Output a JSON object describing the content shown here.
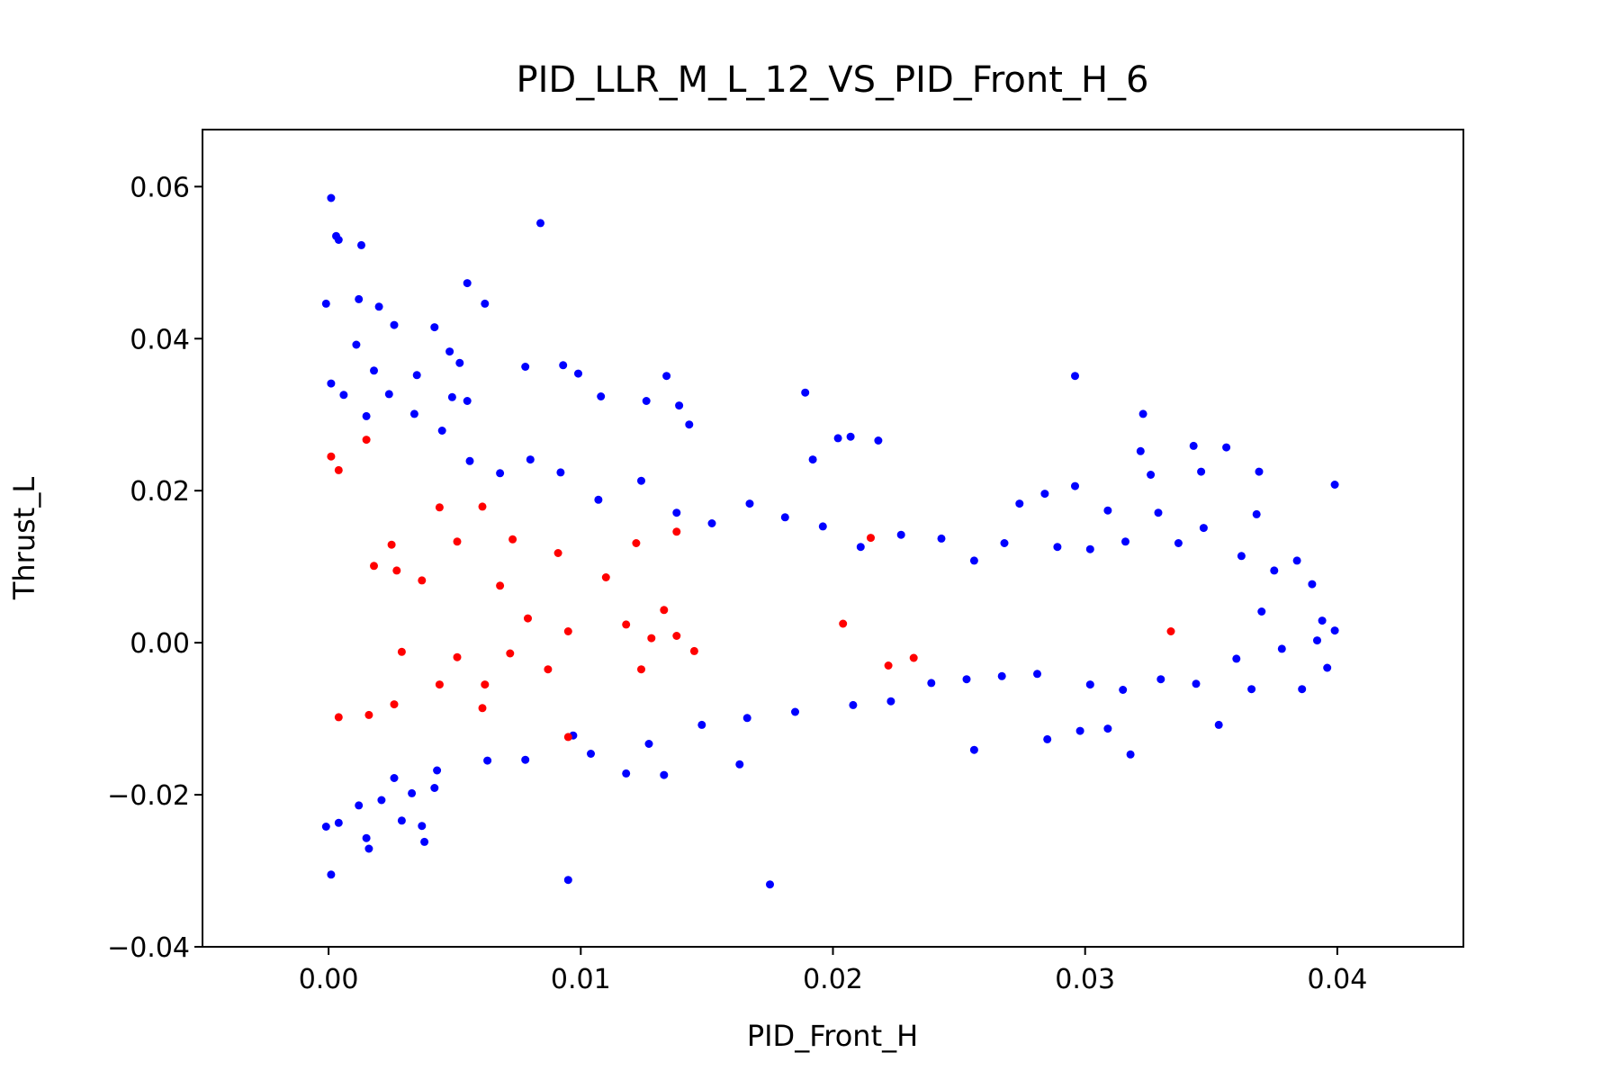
{
  "chart_data": {
    "type": "scatter",
    "title": "PID_LLR_M_L_12_VS_PID_Front_H_6",
    "xlabel": "PID_Front_H",
    "ylabel": "Thrust_L",
    "xlim": [
      -0.005,
      0.045
    ],
    "ylim": [
      -0.04,
      0.0675
    ],
    "xticks": [
      0.0,
      0.01,
      0.02,
      0.03,
      0.04
    ],
    "xtick_labels": [
      "0.00",
      "0.01",
      "0.02",
      "0.03",
      "0.04"
    ],
    "yticks": [
      -0.04,
      -0.02,
      0.0,
      0.02,
      0.04,
      0.06
    ],
    "ytick_labels": [
      "−0.04",
      "−0.02",
      "0.00",
      "0.02",
      "0.04",
      "0.06"
    ],
    "grid": false,
    "legend": "none",
    "series": [
      {
        "color": "#0000ff",
        "points": [
          [
            0.0001,
            0.0585
          ],
          [
            0.0003,
            0.0535
          ],
          [
            0.0004,
            0.053
          ],
          [
            0.0013,
            0.0523
          ],
          [
            0.0084,
            0.0552
          ],
          [
            0.0055,
            0.0473
          ],
          [
            0.0062,
            0.0446
          ],
          [
            -0.0001,
            0.0446
          ],
          [
            0.0012,
            0.0452
          ],
          [
            0.002,
            0.0442
          ],
          [
            0.0026,
            0.0418
          ],
          [
            0.0042,
            0.0415
          ],
          [
            0.0048,
            0.0383
          ],
          [
            0.0052,
            0.0368
          ],
          [
            0.0078,
            0.0363
          ],
          [
            0.0093,
            0.0365
          ],
          [
            0.0099,
            0.0354
          ],
          [
            0.0134,
            0.0351
          ],
          [
            0.0035,
            0.0352
          ],
          [
            0.0018,
            0.0358
          ],
          [
            0.0011,
            0.0392
          ],
          [
            0.0049,
            0.0323
          ],
          [
            0.0055,
            0.0318
          ],
          [
            0.0108,
            0.0324
          ],
          [
            0.0126,
            0.0318
          ],
          [
            0.0139,
            0.0312
          ],
          [
            0.0143,
            0.0287
          ],
          [
            0.0189,
            0.0329
          ],
          [
            0.0296,
            0.0351
          ],
          [
            0.0323,
            0.0301
          ],
          [
            0.0192,
            0.0241
          ],
          [
            0.0202,
            0.0269
          ],
          [
            0.0207,
            0.0271
          ],
          [
            0.0218,
            0.0266
          ],
          [
            0.0322,
            0.0252
          ],
          [
            0.0343,
            0.0259
          ],
          [
            0.0356,
            0.0257
          ],
          [
            0.0369,
            0.0225
          ],
          [
            0.0399,
            0.0208
          ],
          [
            0.0346,
            0.0225
          ],
          [
            0.0326,
            0.0221
          ],
          [
            0.0296,
            0.0206
          ],
          [
            0.0284,
            0.0196
          ],
          [
            0.0274,
            0.0183
          ],
          [
            0.0368,
            0.0169
          ],
          [
            0.0309,
            0.0174
          ],
          [
            0.0329,
            0.0171
          ],
          [
            0.0384,
            0.0108
          ],
          [
            0.037,
            0.0041
          ],
          [
            0.0392,
            0.0003
          ],
          [
            0.0399,
            0.0016
          ],
          [
            0.0396,
            -0.0033
          ],
          [
            0.0386,
            -0.0061
          ],
          [
            0.0366,
            -0.0061
          ],
          [
            0.0353,
            -0.0108
          ],
          [
            0.0318,
            -0.0147
          ],
          [
            0.0309,
            -0.0113
          ],
          [
            0.0298,
            -0.0116
          ],
          [
            0.0285,
            -0.0127
          ],
          [
            0.0256,
            -0.0141
          ],
          [
            0.0095,
            -0.0312
          ],
          [
            0.0175,
            -0.0318
          ],
          [
            0.0001,
            -0.0305
          ],
          [
            0.0016,
            -0.0271
          ],
          [
            0.0038,
            -0.0262
          ],
          [
            0.0015,
            -0.0257
          ],
          [
            0.0029,
            -0.0234
          ],
          [
            0.0037,
            -0.0241
          ],
          [
            -0.0001,
            -0.0242
          ],
          [
            0.0004,
            -0.0237
          ],
          [
            0.0012,
            -0.0214
          ],
          [
            0.0021,
            -0.0207
          ],
          [
            0.0033,
            -0.0198
          ],
          [
            0.0042,
            -0.0191
          ],
          [
            0.0026,
            -0.0178
          ],
          [
            0.0043,
            -0.0168
          ],
          [
            0.0063,
            -0.0155
          ],
          [
            0.0078,
            -0.0154
          ],
          [
            0.0104,
            -0.0146
          ],
          [
            0.0118,
            -0.0172
          ],
          [
            0.0133,
            -0.0174
          ],
          [
            0.0163,
            -0.016
          ],
          [
            0.0097,
            -0.0122
          ],
          [
            0.0127,
            -0.0133
          ],
          [
            0.0148,
            -0.0108
          ],
          [
            0.0166,
            -0.0099
          ],
          [
            0.0185,
            -0.0091
          ],
          [
            0.0208,
            -0.0082
          ],
          [
            0.0223,
            -0.0077
          ],
          [
            0.0239,
            -0.0053
          ],
          [
            0.0253,
            -0.0048
          ],
          [
            0.0267,
            -0.0044
          ],
          [
            0.0281,
            -0.0041
          ],
          [
            0.0302,
            -0.0055
          ],
          [
            0.0315,
            -0.0062
          ],
          [
            0.033,
            -0.0048
          ],
          [
            0.0344,
            -0.0054
          ],
          [
            0.036,
            -0.0021
          ],
          [
            0.0378,
            -0.0008
          ],
          [
            0.0394,
            0.0029
          ],
          [
            0.039,
            0.0077
          ],
          [
            0.0375,
            0.0095
          ],
          [
            0.0362,
            0.0114
          ],
          [
            0.0347,
            0.0151
          ],
          [
            0.0337,
            0.0131
          ],
          [
            0.0316,
            0.0133
          ],
          [
            0.0302,
            0.0123
          ],
          [
            0.0289,
            0.0126
          ],
          [
            0.0268,
            0.0131
          ],
          [
            0.0256,
            0.0108
          ],
          [
            0.0243,
            0.0137
          ],
          [
            0.0227,
            0.0142
          ],
          [
            0.0211,
            0.0126
          ],
          [
            0.0196,
            0.0153
          ],
          [
            0.0181,
            0.0165
          ],
          [
            0.0167,
            0.0183
          ],
          [
            0.0152,
            0.0157
          ],
          [
            0.0138,
            0.0171
          ],
          [
            0.0124,
            0.0213
          ],
          [
            0.0107,
            0.0188
          ],
          [
            0.0092,
            0.0224
          ],
          [
            0.008,
            0.0241
          ],
          [
            0.0068,
            0.0223
          ],
          [
            0.0056,
            0.0239
          ],
          [
            0.0045,
            0.0279
          ],
          [
            0.0034,
            0.0301
          ],
          [
            0.0024,
            0.0327
          ],
          [
            0.0015,
            0.0298
          ],
          [
            0.0006,
            0.0326
          ],
          [
            0.0001,
            0.0341
          ]
        ]
      },
      {
        "color": "#ff0000",
        "points": [
          [
            0.0015,
            0.0267
          ],
          [
            0.0001,
            0.0245
          ],
          [
            0.0004,
            0.0227
          ],
          [
            0.0061,
            0.0179
          ],
          [
            0.0044,
            0.0178
          ],
          [
            0.0138,
            0.0146
          ],
          [
            0.0215,
            0.0138
          ],
          [
            0.0073,
            0.0136
          ],
          [
            0.0051,
            0.0133
          ],
          [
            0.0025,
            0.0129
          ],
          [
            0.0122,
            0.0131
          ],
          [
            0.0091,
            0.0118
          ],
          [
            0.0018,
            0.0101
          ],
          [
            0.0027,
            0.0095
          ],
          [
            0.0037,
            0.0082
          ],
          [
            0.0068,
            0.0075
          ],
          [
            0.011,
            0.0086
          ],
          [
            0.0133,
            0.0043
          ],
          [
            0.0079,
            0.0032
          ],
          [
            0.0118,
            0.0024
          ],
          [
            0.0204,
            0.0025
          ],
          [
            0.0334,
            0.0015
          ],
          [
            0.0138,
            0.0009
          ],
          [
            0.0095,
            0.0015
          ],
          [
            0.0128,
            0.0006
          ],
          [
            0.0087,
            -0.0035
          ],
          [
            0.0051,
            -0.0019
          ],
          [
            0.0029,
            -0.0012
          ],
          [
            0.0072,
            -0.0014
          ],
          [
            0.0062,
            -0.0055
          ],
          [
            0.0061,
            -0.0086
          ],
          [
            0.0016,
            -0.0095
          ],
          [
            0.0004,
            -0.0098
          ],
          [
            0.0026,
            -0.0081
          ],
          [
            0.0095,
            -0.0124
          ],
          [
            0.0124,
            -0.0035
          ],
          [
            0.0222,
            -0.003
          ],
          [
            0.0232,
            -0.002
          ],
          [
            0.0145,
            -0.0011
          ],
          [
            0.0044,
            -0.0055
          ]
        ]
      }
    ]
  }
}
